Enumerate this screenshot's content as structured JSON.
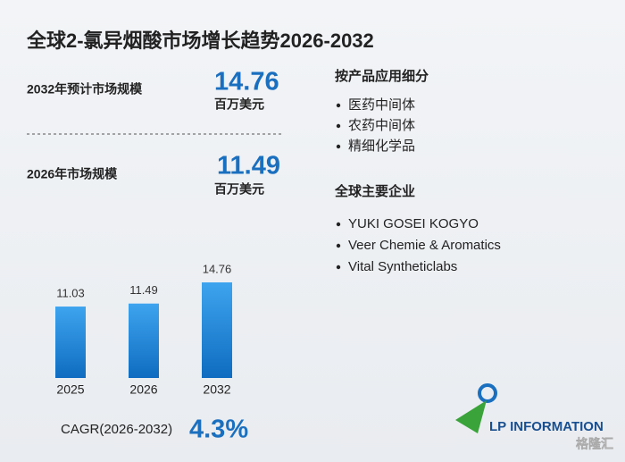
{
  "title": "全球2-氯异烟酸市场增长趋势2026-2032",
  "stats": [
    {
      "label": "2032年预计市场规模",
      "value": 14.76,
      "unit": "百万美元"
    },
    {
      "label": "2026年市场规模",
      "value": 11.49,
      "unit": "百万美元"
    }
  ],
  "segments": {
    "title": "按产品应用细分",
    "items": [
      "医药中间体",
      "农药中间体",
      "精细化学品"
    ]
  },
  "companies": {
    "title": "全球主要企业",
    "items": [
      "YUKI GOSEI KOGYO",
      "Veer Chemie & Aromatics",
      "Vital Syntheticlabs"
    ]
  },
  "chart_data": {
    "type": "bar",
    "categories": [
      "2025",
      "2026",
      "2032"
    ],
    "values": [
      11.03,
      11.49,
      14.76
    ],
    "color": "#1a7fd4"
  },
  "cagr": {
    "label": "CAGR(2026-2032)",
    "value": "4.3%"
  },
  "logo": "LP INFORMATION",
  "watermark": "格隆汇"
}
